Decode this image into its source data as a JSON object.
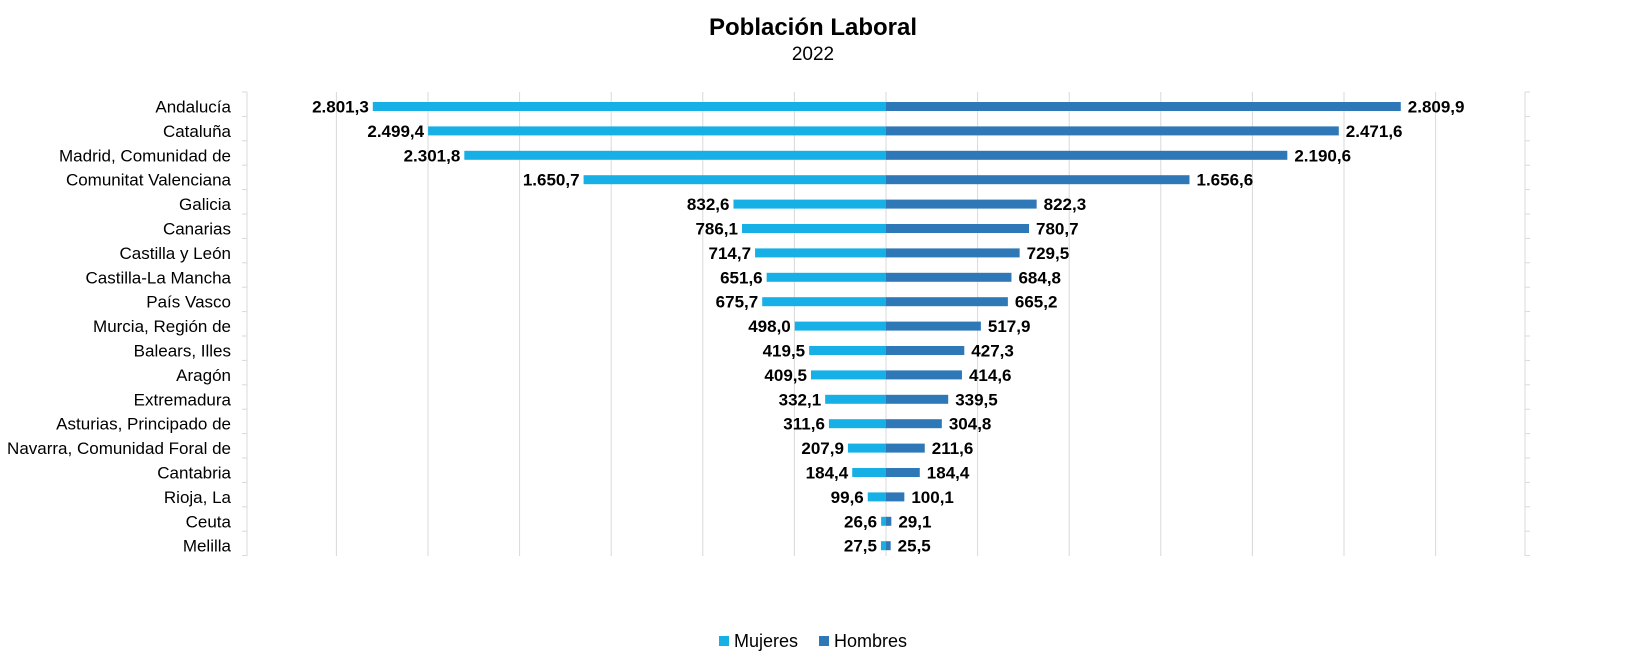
{
  "chart_data": {
    "type": "bar",
    "orientation": "horizontal",
    "layout": "diverging",
    "title": "Población Laboral",
    "subtitle": "2022",
    "categories": [
      "Andalucía",
      "Cataluña",
      "Madrid, Comunidad de",
      "Comunitat Valenciana",
      "Galicia",
      "Canarias",
      "Castilla y León",
      "Castilla-La Mancha",
      "País Vasco",
      "Murcia, Región de",
      "Balears, Illes",
      "Aragón",
      "Extremadura",
      "Asturias, Principado de",
      "Navarra, Comunidad Foral de",
      "Cantabria",
      "Rioja, La",
      "Ceuta",
      "Melilla"
    ],
    "series": [
      {
        "name": "Mujeres",
        "color": "#17b0e6",
        "side": "left",
        "values": [
          2801.3,
          2499.4,
          2301.8,
          1650.7,
          832.6,
          786.1,
          714.7,
          651.6,
          675.7,
          498.0,
          419.5,
          409.5,
          332.1,
          311.6,
          207.9,
          184.4,
          99.6,
          26.6,
          27.5
        ],
        "labels": [
          "2.801,3",
          "2.499,4",
          "2.301,8",
          "1.650,7",
          "832,6",
          "786,1",
          "714,7",
          "651,6",
          "675,7",
          "498,0",
          "419,5",
          "409,5",
          "332,1",
          "311,6",
          "207,9",
          "184,4",
          "99,6",
          "26,6",
          "27,5"
        ]
      },
      {
        "name": "Hombres",
        "color": "#2f78b8",
        "side": "right",
        "values": [
          2809.9,
          2471.6,
          2190.6,
          1656.6,
          822.3,
          780.7,
          729.5,
          684.8,
          665.2,
          517.9,
          427.3,
          414.6,
          339.5,
          304.8,
          211.6,
          184.4,
          100.1,
          29.1,
          25.5
        ],
        "labels": [
          "2.809,9",
          "2.471,6",
          "2.190,6",
          "1.656,6",
          "822,3",
          "780,7",
          "729,5",
          "684,8",
          "665,2",
          "517,9",
          "427,3",
          "414,6",
          "339,5",
          "304,8",
          "211,6",
          "184,4",
          "100,1",
          "29,1",
          "25,5"
        ]
      }
    ],
    "xlim": [
      -3500,
      3500
    ],
    "grid": true,
    "legend_position": "bottom"
  }
}
